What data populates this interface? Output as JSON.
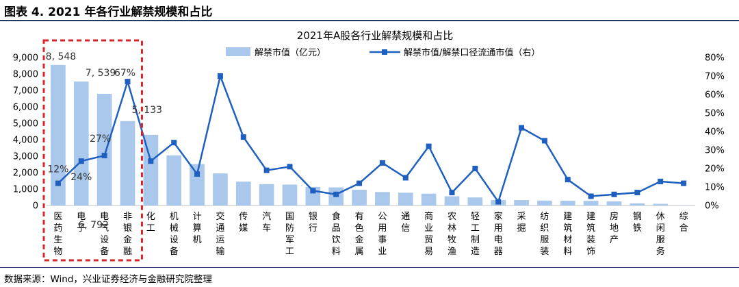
{
  "header": {
    "title": "图表 4. 2021 年各行业解禁规模和占比"
  },
  "footer": {
    "source": "数据来源：Wind，兴业证券经济与金融研究院整理"
  },
  "colors": {
    "bar": "#a9c8ec",
    "line": "#1f5fbf",
    "highlight": "#d9242b",
    "rule": "#1f3864"
  },
  "chart_data": {
    "type": "bar+line",
    "title": "2021年A股各行业解禁规模和占比",
    "legend": {
      "position": "top",
      "bar_label": "解禁市值（亿元）",
      "line_label": "解禁市值/解禁口径流通市值（右）"
    },
    "categories": [
      "医药生物",
      "电子",
      "电气设备",
      "非银金融",
      "化工",
      "机械设备",
      "计算机",
      "交通运输",
      "传媒",
      "汽车",
      "国防军工",
      "银行",
      "食品饮料",
      "有色金属",
      "公用事业",
      "通信",
      "商业贸易",
      "农林牧渔",
      "轻工制造",
      "家用电器",
      "采掘",
      "纺织服装",
      "建筑材料",
      "建筑装饰",
      "房地产",
      "钢铁",
      "休闲服务",
      "综合"
    ],
    "series": [
      {
        "name": "解禁市值（亿元）",
        "type": "bar",
        "axis": "left",
        "values": [
          8548,
          7539,
          6792,
          5133,
          4300,
          3050,
          2520,
          1950,
          1450,
          1300,
          1270,
          1130,
          1100,
          960,
          820,
          780,
          720,
          560,
          490,
          330,
          330,
          300,
          290,
          280,
          250,
          130,
          100,
          10
        ]
      },
      {
        "name": "解禁市值/解禁口径流通市值（右）",
        "type": "line",
        "axis": "right",
        "values": [
          12,
          24,
          27,
          67,
          24,
          34,
          17,
          70,
          37,
          19,
          21,
          8,
          6,
          12,
          23,
          15,
          32,
          7,
          20,
          2,
          42,
          35,
          14,
          5,
          6,
          7,
          13,
          12
        ]
      }
    ],
    "left_axis": {
      "ylim": [
        0,
        9000
      ],
      "ticks": [
        "0",
        "1,000",
        "2,000",
        "3,000",
        "4,000",
        "5,000",
        "6,000",
        "7,000",
        "8,000",
        "9,000"
      ]
    },
    "right_axis": {
      "ylim": [
        0,
        80
      ],
      "ticks": [
        "0%",
        "10%",
        "20%",
        "30%",
        "40%",
        "50%",
        "60%",
        "70%",
        "80%"
      ]
    },
    "annotations": [
      {
        "text": "8, 548",
        "series": "bar",
        "index": 0
      },
      {
        "text": "7, 539",
        "series": "bar",
        "index": 1
      },
      {
        "text": "6, 792",
        "series": "bar",
        "index": 2
      },
      {
        "text": "5, 133",
        "series": "bar",
        "index": 3
      },
      {
        "text": "12%",
        "series": "line",
        "index": 0
      },
      {
        "text": "24%",
        "series": "line",
        "index": 1
      },
      {
        "text": "27%",
        "series": "line",
        "index": 2
      },
      {
        "text": "67%",
        "series": "line",
        "index": 3
      }
    ],
    "highlight_box": {
      "from_index": 0,
      "to_index": 3
    }
  }
}
